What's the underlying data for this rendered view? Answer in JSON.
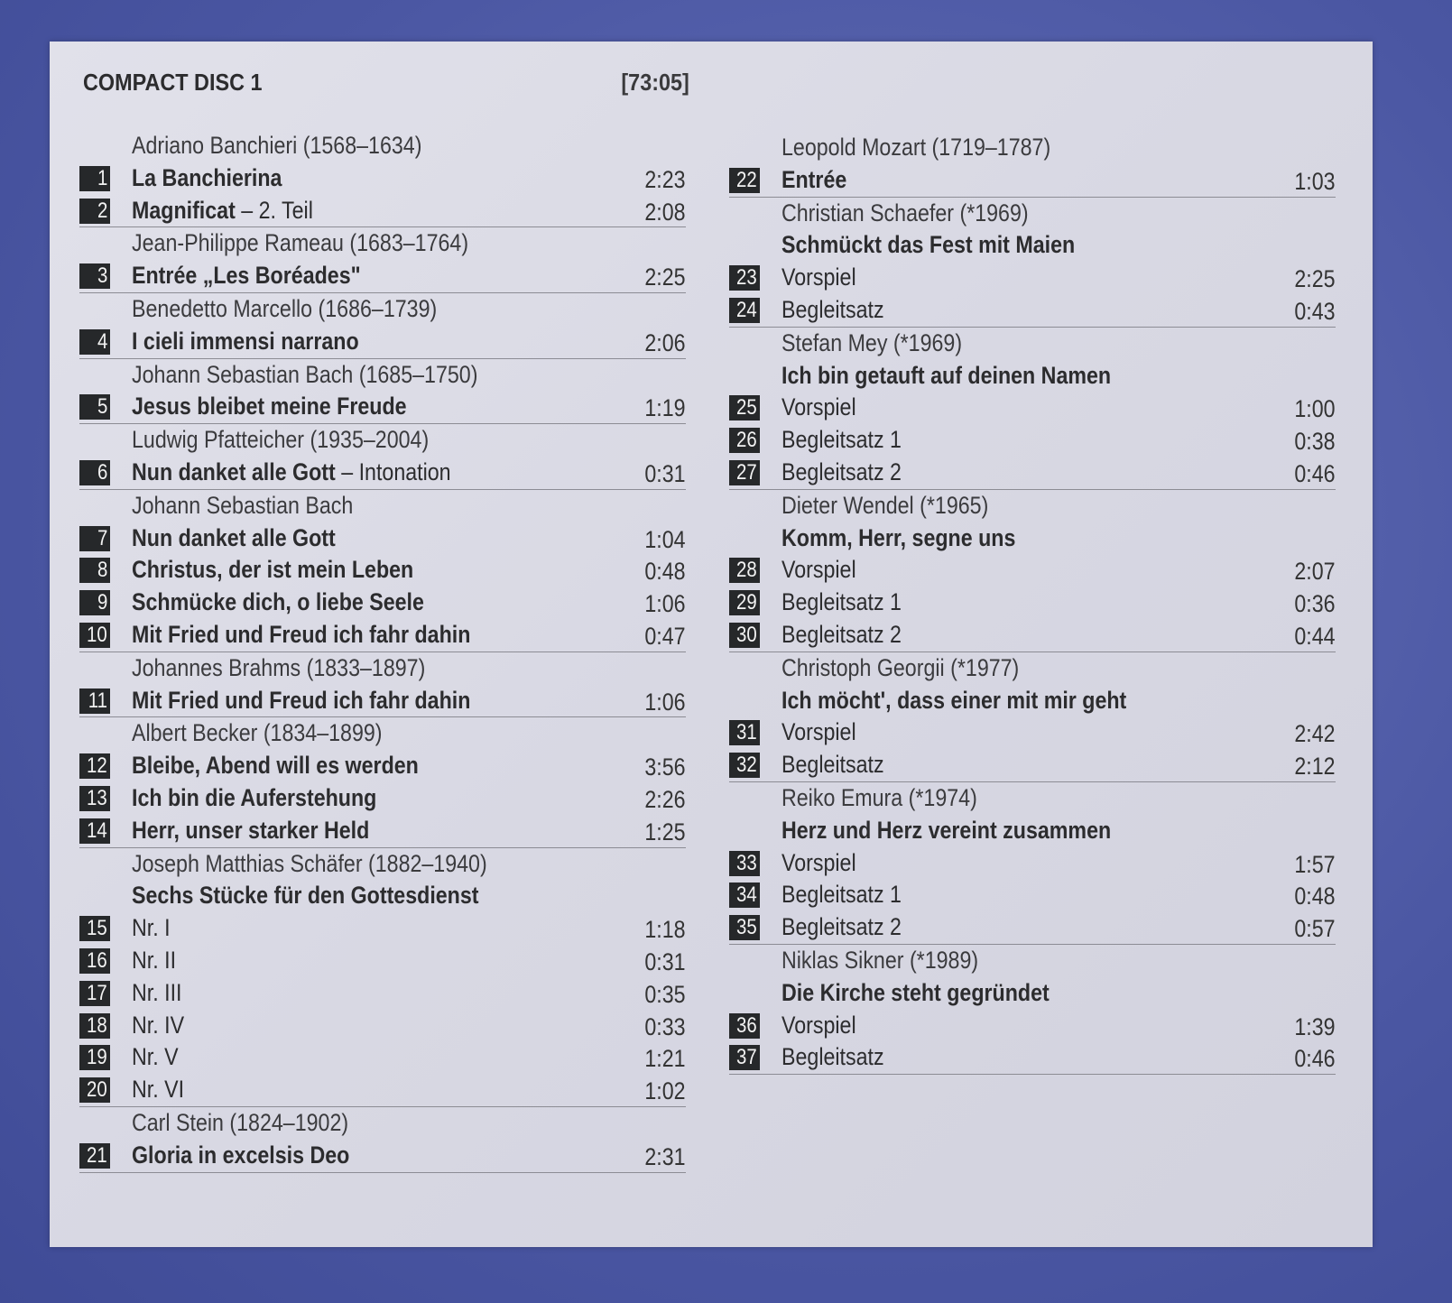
{
  "header": {
    "title": "COMPACT DISC 1",
    "total": "[73:05]"
  },
  "colors": {
    "background": "#4b57a3",
    "panel": "#dcdce6",
    "badge": "#26282a",
    "text": "#2c2c2e"
  },
  "columns": [
    [
      {
        "composer": "Adriano Banchieri (1568–1634)",
        "tracks": [
          {
            "n": "1",
            "title": "La Banchierina",
            "dur": "2:23",
            "bold": true
          },
          {
            "n": "2",
            "title": "Magnificat",
            "suffix": " – 2. Teil",
            "dur": "2:08",
            "bold": true
          }
        ]
      },
      {
        "composer": "Jean-Philippe Rameau (1683–1764)",
        "tracks": [
          {
            "n": "3",
            "title": "Entrée „Les Boréades\"",
            "dur": "2:25",
            "bold": true
          }
        ]
      },
      {
        "composer": "Benedetto Marcello (1686–1739)",
        "tracks": [
          {
            "n": "4",
            "title": "I cieli immensi narrano",
            "dur": "2:06",
            "bold": true
          }
        ]
      },
      {
        "composer": "Johann Sebastian Bach (1685–1750)",
        "tracks": [
          {
            "n": "5",
            "title": "Jesus bleibet meine Freude",
            "dur": "1:19",
            "bold": true
          }
        ]
      },
      {
        "composer": "Ludwig Pfatteicher (1935–2004)",
        "tracks": [
          {
            "n": "6",
            "title": "Nun danket alle Gott",
            "suffix": " – Intonation",
            "dur": "0:31",
            "bold": true
          }
        ]
      },
      {
        "composer": "Johann Sebastian Bach",
        "tracks": [
          {
            "n": "7",
            "title": "Nun danket alle Gott",
            "dur": "1:04",
            "bold": true
          },
          {
            "n": "8",
            "title": "Christus, der ist mein Leben",
            "dur": "0:48",
            "bold": true
          },
          {
            "n": "9",
            "title": "Schmücke dich, o liebe Seele",
            "dur": "1:06",
            "bold": true
          },
          {
            "n": "10",
            "title": "Mit Fried und Freud ich fahr dahin",
            "dur": "0:47",
            "bold": true
          }
        ]
      },
      {
        "composer": "Johannes Brahms (1833–1897)",
        "tracks": [
          {
            "n": "11",
            "title": "Mit Fried und Freud ich fahr dahin",
            "dur": "1:06",
            "bold": true
          }
        ]
      },
      {
        "composer": "Albert Becker (1834–1899)",
        "tracks": [
          {
            "n": "12",
            "title": "Bleibe, Abend will es werden",
            "dur": "3:56",
            "bold": true
          },
          {
            "n": "13",
            "title": "Ich bin die Auferstehung",
            "dur": "2:26",
            "bold": true
          },
          {
            "n": "14",
            "title": "Herr, unser starker Held",
            "dur": "1:25",
            "bold": true
          }
        ]
      },
      {
        "composer": "Joseph Matthias Schäfer (1882–1940)",
        "work": "Sechs Stücke für den Gottesdienst",
        "tracks": [
          {
            "n": "15",
            "title": "Nr. I",
            "dur": "1:18"
          },
          {
            "n": "16",
            "title": "Nr. II",
            "dur": "0:31"
          },
          {
            "n": "17",
            "title": "Nr. III",
            "dur": "0:35"
          },
          {
            "n": "18",
            "title": "Nr. IV",
            "dur": "0:33"
          },
          {
            "n": "19",
            "title": "Nr. V",
            "dur": "1:21"
          },
          {
            "n": "20",
            "title": "Nr. VI",
            "dur": "1:02"
          }
        ]
      },
      {
        "composer": "Carl Stein (1824–1902)",
        "tracks": [
          {
            "n": "21",
            "title": "Gloria in excelsis Deo",
            "dur": "2:31",
            "bold": true
          }
        ]
      }
    ],
    [
      {
        "composer": "Leopold Mozart (1719–1787)",
        "tracks": [
          {
            "n": "22",
            "title": "Entrée",
            "dur": "1:03",
            "bold": true
          }
        ]
      },
      {
        "composer": "Christian Schaefer (*1969)",
        "work": "Schmückt das Fest mit Maien",
        "tracks": [
          {
            "n": "23",
            "title": "Vorspiel",
            "dur": "2:25"
          },
          {
            "n": "24",
            "title": "Begleitsatz",
            "dur": "0:43"
          }
        ]
      },
      {
        "composer": "Stefan Mey (*1969)",
        "work": "Ich bin getauft auf deinen Namen",
        "tracks": [
          {
            "n": "25",
            "title": "Vorspiel",
            "dur": "1:00"
          },
          {
            "n": "26",
            "title": "Begleitsatz 1",
            "dur": "0:38"
          },
          {
            "n": "27",
            "title": "Begleitsatz 2",
            "dur": "0:46"
          }
        ]
      },
      {
        "composer": "Dieter Wendel (*1965)",
        "work": "Komm, Herr, segne uns",
        "tracks": [
          {
            "n": "28",
            "title": "Vorspiel",
            "dur": "2:07"
          },
          {
            "n": "29",
            "title": "Begleitsatz 1",
            "dur": "0:36"
          },
          {
            "n": "30",
            "title": "Begleitsatz 2",
            "dur": "0:44"
          }
        ]
      },
      {
        "composer": "Christoph Georgii (*1977)",
        "work": "Ich möcht', dass einer mit mir geht",
        "tracks": [
          {
            "n": "31",
            "title": "Vorspiel",
            "dur": "2:42"
          },
          {
            "n": "32",
            "title": "Begleitsatz",
            "dur": "2:12"
          }
        ]
      },
      {
        "composer": "Reiko Emura (*1974)",
        "work": "Herz und Herz vereint zusammen",
        "tracks": [
          {
            "n": "33",
            "title": "Vorspiel",
            "dur": "1:57"
          },
          {
            "n": "34",
            "title": "Begleitsatz 1",
            "dur": "0:48"
          },
          {
            "n": "35",
            "title": "Begleitsatz 2",
            "dur": "0:57"
          }
        ]
      },
      {
        "composer": "Niklas Sikner (*1989)",
        "work": "Die Kirche steht gegründet",
        "tracks": [
          {
            "n": "36",
            "title": "Vorspiel",
            "dur": "1:39"
          },
          {
            "n": "37",
            "title": "Begleitsatz",
            "dur": "0:46"
          }
        ]
      }
    ]
  ]
}
